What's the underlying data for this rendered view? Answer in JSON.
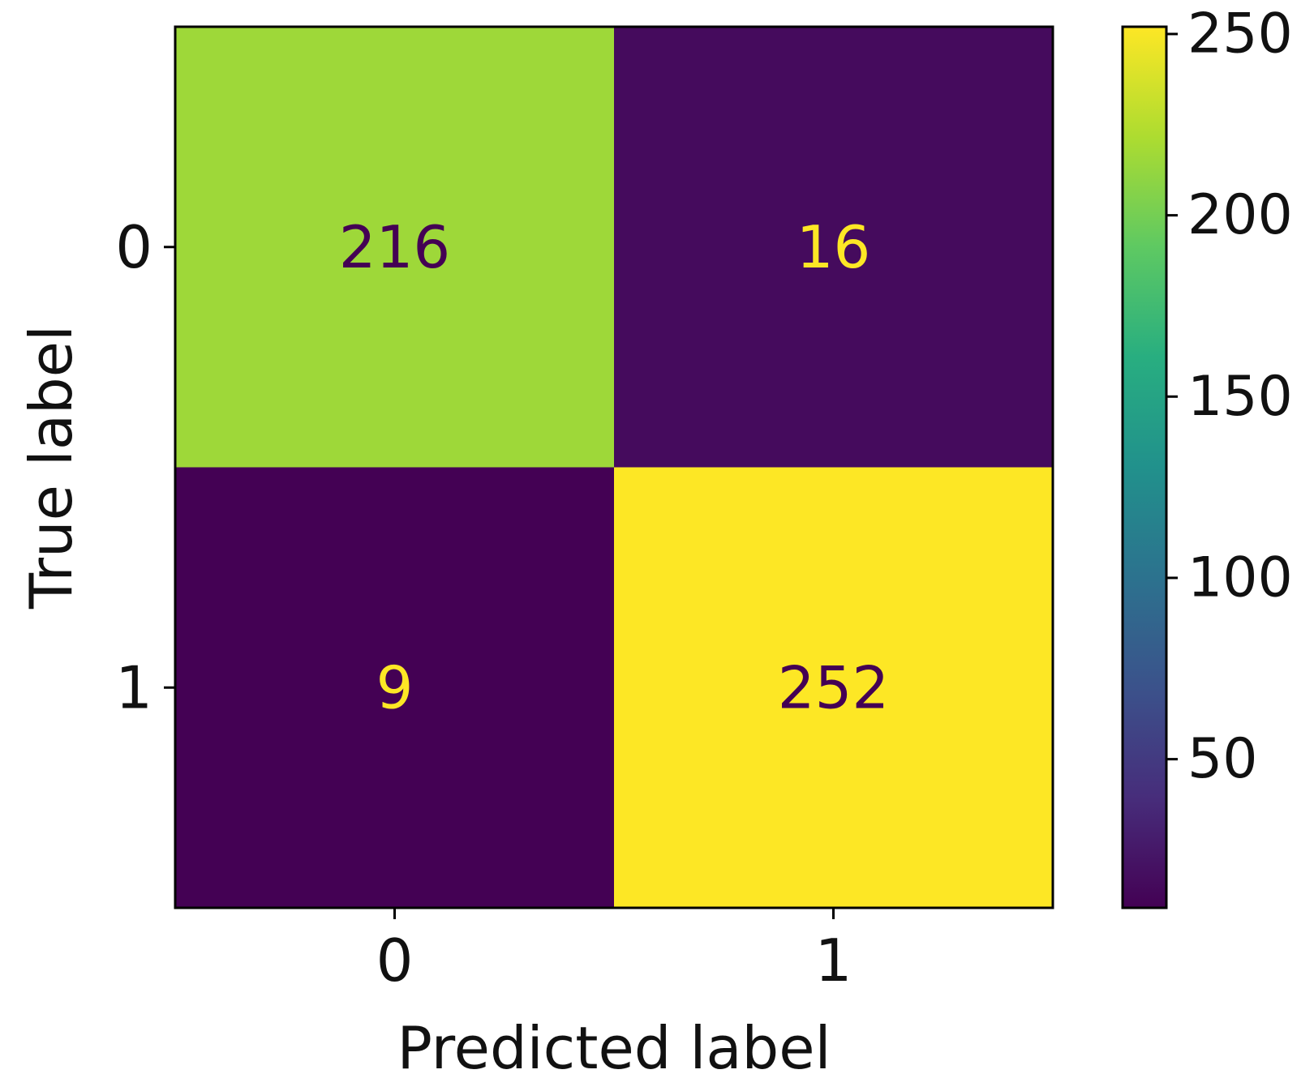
{
  "chart_data": {
    "type": "heatmap",
    "title": "",
    "xlabel": "Predicted label",
    "ylabel": "True label",
    "x_categories": [
      "0",
      "1"
    ],
    "y_categories": [
      "0",
      "1"
    ],
    "values": [
      [
        216,
        16
      ],
      [
        9,
        252
      ]
    ],
    "colormap": "viridis",
    "colorbar": {
      "ticks": [
        "50",
        "100",
        "150",
        "200",
        "250"
      ],
      "tick_values": [
        50,
        100,
        150,
        200,
        250
      ],
      "range": [
        9,
        252
      ]
    },
    "colors": {
      "low": "#440154",
      "high": "#fde725",
      "text_on_light": "#440154",
      "text_on_dark": "#fde725"
    },
    "grid": false
  }
}
